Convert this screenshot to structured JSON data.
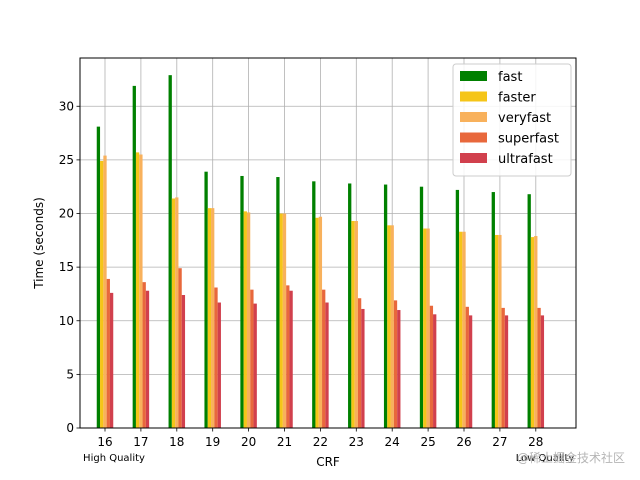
{
  "chart_data": {
    "type": "bar",
    "title": "",
    "xlabel": "CRF",
    "ylabel": "Time (seconds)",
    "categories": [
      "16",
      "17",
      "18",
      "19",
      "20",
      "21",
      "22",
      "23",
      "24",
      "25",
      "26",
      "27",
      "28"
    ],
    "ylim": [
      0,
      34.5
    ],
    "yticks": [
      0,
      5,
      10,
      15,
      20,
      25,
      30
    ],
    "grid": true,
    "legend_position": "top-right",
    "series": [
      {
        "name": "fast",
        "color": "#008000",
        "values": [
          28.1,
          31.9,
          32.9,
          23.9,
          23.5,
          23.4,
          23.0,
          22.8,
          22.7,
          22.5,
          22.2,
          22.0,
          21.8
        ]
      },
      {
        "name": "faster",
        "color": "#f5c518",
        "values": [
          24.9,
          25.7,
          21.4,
          20.5,
          20.2,
          20.0,
          19.6,
          19.3,
          18.9,
          18.6,
          18.3,
          18.0,
          17.8
        ]
      },
      {
        "name": "veryfast",
        "color": "#f8b15c",
        "values": [
          25.4,
          25.5,
          21.5,
          20.5,
          20.1,
          20.0,
          19.7,
          19.3,
          18.9,
          18.6,
          18.3,
          18.0,
          17.9
        ]
      },
      {
        "name": "superfast",
        "color": "#e8683c",
        "values": [
          13.9,
          13.6,
          14.9,
          13.1,
          12.9,
          13.3,
          12.9,
          12.1,
          11.9,
          11.4,
          11.3,
          11.2,
          11.2
        ]
      },
      {
        "name": "ultrafast",
        "color": "#d1404d",
        "values": [
          12.6,
          12.8,
          12.4,
          11.7,
          11.6,
          12.8,
          11.7,
          11.1,
          11.0,
          10.6,
          10.5,
          10.5,
          10.5
        ]
      }
    ],
    "annotations": {
      "left": "High Quality",
      "right": "Low Quality"
    }
  },
  "watermark": "@稀土掘金技术社区"
}
